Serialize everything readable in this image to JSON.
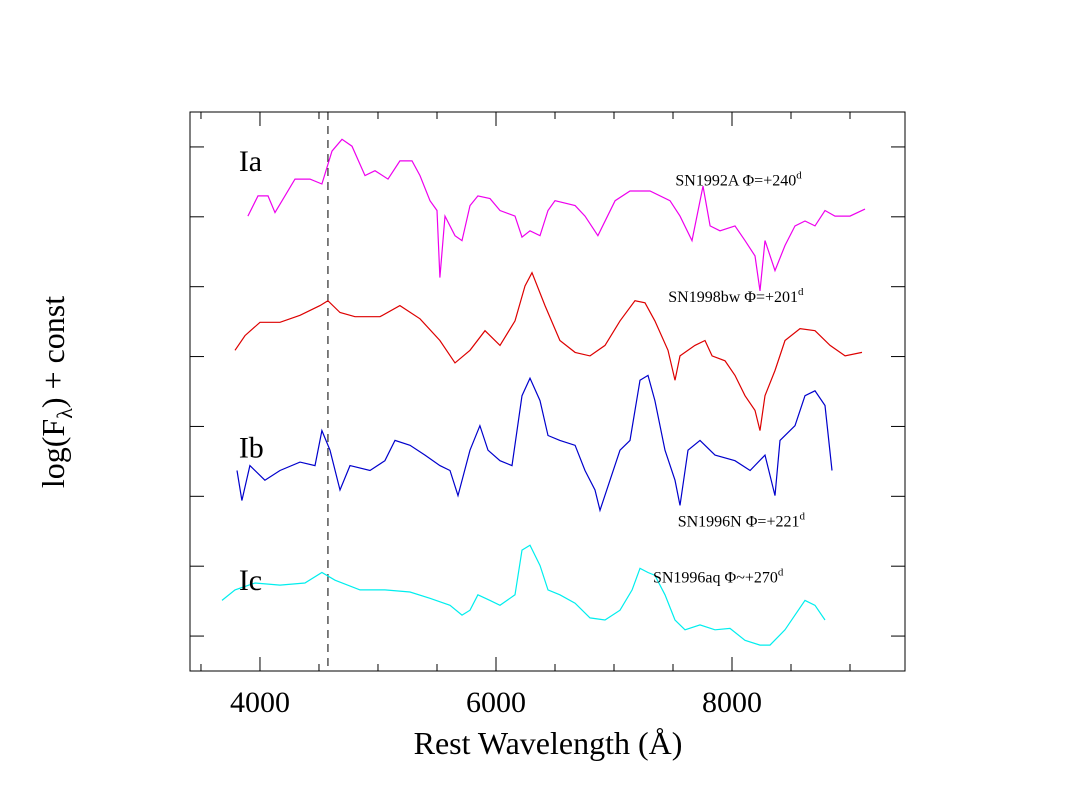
{
  "chart_data": {
    "type": "line",
    "title": "",
    "xlabel": "Rest Wavelength (Å)",
    "ylabel_main": "log(F",
    "ylabel_sub": "λ",
    "ylabel_tail": ") + const",
    "xlim": [
      3407,
      9466
    ],
    "ylim": [
      0,
      8
    ],
    "xticks_major": [
      4000,
      6000,
      8000
    ],
    "xtick_labels": [
      "4000",
      "6000",
      "8000"
    ],
    "xticks_minor_step": 500,
    "yticks": [
      0.5,
      1.5,
      2.5,
      3.5,
      4.5,
      5.5,
      6.5,
      7.5
    ],
    "grid": false,
    "vline": {
      "x": 4576,
      "style": "dashed"
    },
    "type_labels": [
      {
        "text": "Ia",
        "x": 3880,
        "y": 7.3
      },
      {
        "text": "Ib",
        "x": 3880,
        "y": 3.2
      },
      {
        "text": "Ic",
        "x": 3880,
        "y": 1.3
      }
    ],
    "series": [
      {
        "name": "SN1992A",
        "phase_sym": "Φ=+240",
        "sup": "d",
        "color": "#ee00ee",
        "label_pos": [
          7520,
          6.95
        ],
        "points": [
          [
            3898,
            6.51
          ],
          [
            3983,
            6.8
          ],
          [
            4068,
            6.8
          ],
          [
            4127,
            6.56
          ],
          [
            4297,
            7.04
          ],
          [
            4424,
            7.04
          ],
          [
            4525,
            6.97
          ],
          [
            4610,
            7.44
          ],
          [
            4695,
            7.61
          ],
          [
            4780,
            7.51
          ],
          [
            4890,
            7.09
          ],
          [
            4975,
            7.16
          ],
          [
            5085,
            7.04
          ],
          [
            5186,
            7.3
          ],
          [
            5288,
            7.3
          ],
          [
            5356,
            7.09
          ],
          [
            5441,
            6.73
          ],
          [
            5500,
            6.59
          ],
          [
            5525,
            5.63
          ],
          [
            5568,
            6.51
          ],
          [
            5653,
            6.23
          ],
          [
            5712,
            6.16
          ],
          [
            5780,
            6.66
          ],
          [
            5847,
            6.8
          ],
          [
            5949,
            6.76
          ],
          [
            6034,
            6.59
          ],
          [
            6161,
            6.51
          ],
          [
            6220,
            6.21
          ],
          [
            6288,
            6.3
          ],
          [
            6373,
            6.23
          ],
          [
            6441,
            6.59
          ],
          [
            6500,
            6.73
          ],
          [
            6670,
            6.66
          ],
          [
            6754,
            6.51
          ],
          [
            6864,
            6.23
          ],
          [
            7009,
            6.73
          ],
          [
            7136,
            6.87
          ],
          [
            7305,
            6.87
          ],
          [
            7475,
            6.73
          ],
          [
            7559,
            6.51
          ],
          [
            7661,
            6.16
          ],
          [
            7754,
            6.94
          ],
          [
            7814,
            6.37
          ],
          [
            7898,
            6.3
          ],
          [
            8025,
            6.37
          ],
          [
            8110,
            6.16
          ],
          [
            8195,
            5.94
          ],
          [
            8237,
            5.44
          ],
          [
            8280,
            6.16
          ],
          [
            8364,
            5.73
          ],
          [
            8449,
            6.09
          ],
          [
            8534,
            6.37
          ],
          [
            8619,
            6.44
          ],
          [
            8703,
            6.37
          ],
          [
            8788,
            6.59
          ],
          [
            8873,
            6.51
          ],
          [
            9000,
            6.51
          ],
          [
            9127,
            6.61
          ]
        ]
      },
      {
        "name": "SN1998bw",
        "phase_sym": "Φ=+201",
        "sup": "d",
        "color": "#dd0000",
        "label_pos": [
          7460,
          5.28
        ],
        "points": [
          [
            3788,
            4.59
          ],
          [
            3873,
            4.8
          ],
          [
            4000,
            4.99
          ],
          [
            4170,
            4.99
          ],
          [
            4339,
            5.09
          ],
          [
            4509,
            5.23
          ],
          [
            4576,
            5.3
          ],
          [
            4678,
            5.13
          ],
          [
            4805,
            5.07
          ],
          [
            5017,
            5.07
          ],
          [
            5186,
            5.23
          ],
          [
            5356,
            5.04
          ],
          [
            5525,
            4.73
          ],
          [
            5653,
            4.41
          ],
          [
            5780,
            4.59
          ],
          [
            5907,
            4.87
          ],
          [
            6034,
            4.66
          ],
          [
            6161,
            5.01
          ],
          [
            6246,
            5.51
          ],
          [
            6305,
            5.7
          ],
          [
            6415,
            5.23
          ],
          [
            6542,
            4.73
          ],
          [
            6670,
            4.56
          ],
          [
            6797,
            4.51
          ],
          [
            6924,
            4.66
          ],
          [
            7051,
            5.01
          ],
          [
            7178,
            5.3
          ],
          [
            7263,
            5.27
          ],
          [
            7347,
            5.01
          ],
          [
            7458,
            4.59
          ],
          [
            7517,
            4.16
          ],
          [
            7559,
            4.51
          ],
          [
            7686,
            4.66
          ],
          [
            7771,
            4.73
          ],
          [
            7831,
            4.51
          ],
          [
            7941,
            4.44
          ],
          [
            8025,
            4.23
          ],
          [
            8110,
            3.94
          ],
          [
            8195,
            3.73
          ],
          [
            8237,
            3.44
          ],
          [
            8280,
            3.94
          ],
          [
            8364,
            4.3
          ],
          [
            8449,
            4.73
          ],
          [
            8576,
            4.9
          ],
          [
            8703,
            4.87
          ],
          [
            8831,
            4.66
          ],
          [
            8958,
            4.51
          ],
          [
            9102,
            4.56
          ]
        ]
      },
      {
        "name": "SN1996N",
        "phase_sym": "Φ=+221",
        "sup": "d",
        "color": "#0000cc",
        "label_pos": [
          7540,
          2.07
        ],
        "points": [
          [
            3805,
            2.87
          ],
          [
            3847,
            2.44
          ],
          [
            3915,
            2.94
          ],
          [
            4042,
            2.73
          ],
          [
            4170,
            2.87
          ],
          [
            4339,
            2.99
          ],
          [
            4466,
            2.94
          ],
          [
            4525,
            3.44
          ],
          [
            4593,
            3.16
          ],
          [
            4678,
            2.59
          ],
          [
            4763,
            2.94
          ],
          [
            4932,
            2.87
          ],
          [
            5059,
            3.01
          ],
          [
            5144,
            3.3
          ],
          [
            5271,
            3.23
          ],
          [
            5398,
            3.09
          ],
          [
            5525,
            2.94
          ],
          [
            5610,
            2.87
          ],
          [
            5678,
            2.51
          ],
          [
            5780,
            3.16
          ],
          [
            5864,
            3.51
          ],
          [
            5932,
            3.16
          ],
          [
            6034,
            3.01
          ],
          [
            6136,
            2.94
          ],
          [
            6220,
            3.94
          ],
          [
            6288,
            4.19
          ],
          [
            6373,
            3.87
          ],
          [
            6441,
            3.37
          ],
          [
            6542,
            3.3
          ],
          [
            6670,
            3.23
          ],
          [
            6754,
            2.87
          ],
          [
            6839,
            2.59
          ],
          [
            6881,
            2.3
          ],
          [
            6966,
            2.73
          ],
          [
            7051,
            3.16
          ],
          [
            7136,
            3.3
          ],
          [
            7220,
            4.16
          ],
          [
            7288,
            4.23
          ],
          [
            7347,
            3.87
          ],
          [
            7432,
            3.16
          ],
          [
            7517,
            2.73
          ],
          [
            7559,
            2.37
          ],
          [
            7627,
            3.16
          ],
          [
            7729,
            3.3
          ],
          [
            7856,
            3.09
          ],
          [
            8025,
            3.01
          ],
          [
            8153,
            2.87
          ],
          [
            8280,
            3.09
          ],
          [
            8364,
            2.51
          ],
          [
            8407,
            3.3
          ],
          [
            8534,
            3.51
          ],
          [
            8619,
            3.94
          ],
          [
            8703,
            4.01
          ],
          [
            8788,
            3.8
          ],
          [
            8847,
            2.87
          ]
        ]
      },
      {
        "name": "SN1996aq",
        "phase_sym": "Φ~+270",
        "sup": "d",
        "color": "#00eeee",
        "label_pos": [
          7330,
          1.27
        ],
        "points": [
          [
            3678,
            1.01
          ],
          [
            3788,
            1.16
          ],
          [
            3958,
            1.26
          ],
          [
            4170,
            1.23
          ],
          [
            4381,
            1.26
          ],
          [
            4525,
            1.41
          ],
          [
            4636,
            1.3
          ],
          [
            4848,
            1.16
          ],
          [
            5059,
            1.16
          ],
          [
            5271,
            1.13
          ],
          [
            5441,
            1.04
          ],
          [
            5610,
            0.94
          ],
          [
            5712,
            0.8
          ],
          [
            5780,
            0.87
          ],
          [
            5847,
            1.09
          ],
          [
            5949,
            1.01
          ],
          [
            6034,
            0.94
          ],
          [
            6161,
            1.09
          ],
          [
            6220,
            1.73
          ],
          [
            6288,
            1.8
          ],
          [
            6373,
            1.51
          ],
          [
            6441,
            1.16
          ],
          [
            6542,
            1.09
          ],
          [
            6670,
            0.97
          ],
          [
            6797,
            0.76
          ],
          [
            6924,
            0.73
          ],
          [
            7051,
            0.87
          ],
          [
            7153,
            1.16
          ],
          [
            7220,
            1.47
          ],
          [
            7288,
            1.41
          ],
          [
            7347,
            1.37
          ],
          [
            7432,
            1.09
          ],
          [
            7517,
            0.73
          ],
          [
            7602,
            0.59
          ],
          [
            7729,
            0.66
          ],
          [
            7856,
            0.59
          ],
          [
            7983,
            0.61
          ],
          [
            8110,
            0.44
          ],
          [
            8237,
            0.37
          ],
          [
            8322,
            0.37
          ],
          [
            8449,
            0.59
          ],
          [
            8534,
            0.8
          ],
          [
            8619,
            1.01
          ],
          [
            8703,
            0.94
          ],
          [
            8788,
            0.73
          ]
        ]
      }
    ]
  }
}
